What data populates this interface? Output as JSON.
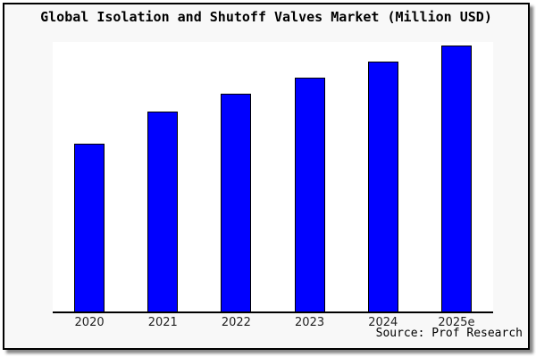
{
  "header": {
    "title": "Global Isolation and Shutoff Valves Market (Million USD)"
  },
  "footer": {
    "source_label": "Source: Prof Research"
  },
  "colors": {
    "bar_fill": "#0000ff",
    "bar_border": "#000000",
    "panel_background": "#f8f8f8",
    "plot_background": "#ffffff",
    "axis_line": "#000000"
  },
  "chart_data": {
    "type": "bar",
    "title": "Global Isolation and Shutoff Valves Market (Million USD)",
    "categories": [
      "2020",
      "2021",
      "2022",
      "2023",
      "2024",
      "2025e"
    ],
    "values": [
      63,
      75,
      82,
      88,
      94,
      100
    ],
    "units_note": "No y-axis scale shown; values are relative bar heights indexed to 2025e = 100",
    "xlabel": "",
    "ylabel": "",
    "ylim": [
      0,
      101.3
    ],
    "grid": false,
    "legend": false,
    "bar_color": "#0000ff",
    "bar_border_color": "#000000",
    "source": "Source: Prof Research"
  }
}
